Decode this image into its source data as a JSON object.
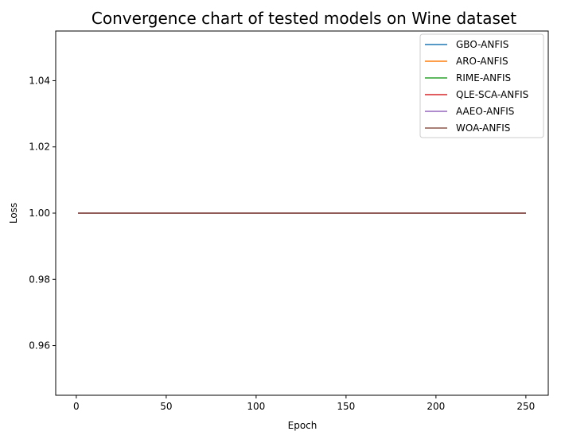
{
  "chart_data": {
    "type": "line",
    "title": "Convergence chart of tested models on Wine dataset",
    "xlabel": "Epoch",
    "ylabel": "Loss",
    "xlim": [
      -11.45,
      262.45
    ],
    "ylim": [
      0.945,
      1.055
    ],
    "xticks": [
      0,
      50,
      100,
      150,
      200,
      250
    ],
    "yticks": [
      0.96,
      0.98,
      1.0,
      1.02,
      1.04
    ],
    "xtick_labels": [
      "0",
      "50",
      "100",
      "150",
      "200",
      "250"
    ],
    "ytick_labels": [
      "0.96",
      "0.98",
      "1.00",
      "1.02",
      "1.04"
    ],
    "grid": false,
    "legend_position": "top-right",
    "series": [
      {
        "name": "GBO-ANFIS",
        "color": "#1f77b4",
        "x": [
          1,
          250
        ],
        "y": [
          1.0,
          1.0
        ]
      },
      {
        "name": "ARO-ANFIS",
        "color": "#ff7f0e",
        "x": [
          1,
          250
        ],
        "y": [
          1.0,
          1.0
        ]
      },
      {
        "name": "RIME-ANFIS",
        "color": "#2ca02c",
        "x": [
          1,
          250
        ],
        "y": [
          1.0,
          1.0
        ]
      },
      {
        "name": "QLE-SCA-ANFIS",
        "color": "#d62728",
        "x": [
          1,
          250
        ],
        "y": [
          1.0,
          1.0
        ]
      },
      {
        "name": "AAEO-ANFIS",
        "color": "#9467bd",
        "x": [
          1,
          250
        ],
        "y": [
          1.0,
          1.0
        ]
      },
      {
        "name": "WOA-ANFIS",
        "color": "#8c564b",
        "x": [
          1,
          250
        ],
        "y": [
          1.0,
          1.0
        ]
      }
    ]
  }
}
